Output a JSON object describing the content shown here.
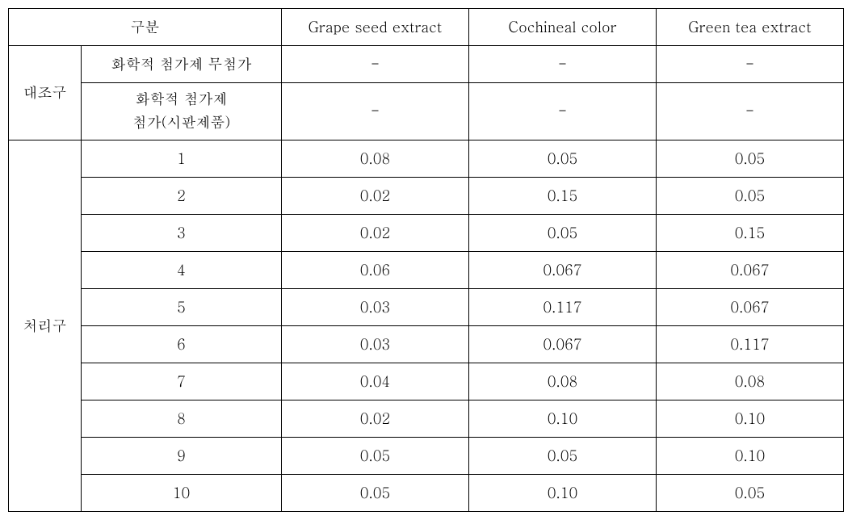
{
  "table": {
    "header": {
      "category": "구분",
      "col1": "Grape seed extract",
      "col2": "Cochineal color",
      "col3": "Green tea extract"
    },
    "control": {
      "label": "대조구",
      "rows": [
        {
          "sub": "화학적 첨가제 무첨가",
          "v1": "-",
          "v2": "-",
          "v3": "-"
        },
        {
          "sub_l1": "화학적 첨가제",
          "sub_l2": "첨가(시판제품)",
          "v1": "-",
          "v2": "-",
          "v3": "-"
        }
      ]
    },
    "treatment": {
      "label": "처리구",
      "rows": [
        {
          "sub": "1",
          "v1": "0.08",
          "v2": "0.05",
          "v3": "0.05"
        },
        {
          "sub": "2",
          "v1": "0.02",
          "v2": "0.15",
          "v3": "0.05"
        },
        {
          "sub": "3",
          "v1": "0.02",
          "v2": "0.05",
          "v3": "0.15"
        },
        {
          "sub": "4",
          "v1": "0.06",
          "v2": "0.067",
          "v3": "0.067"
        },
        {
          "sub": "5",
          "v1": "0.03",
          "v2": "0.117",
          "v3": "0.067"
        },
        {
          "sub": "6",
          "v1": "0.03",
          "v2": "0.067",
          "v3": "0.117"
        },
        {
          "sub": "7",
          "v1": "0.04",
          "v2": "0.08",
          "v3": "0.08"
        },
        {
          "sub": "8",
          "v1": "0.02",
          "v2": "0.10",
          "v3": "0.10"
        },
        {
          "sub": "9",
          "v1": "0.05",
          "v2": "0.05",
          "v3": "0.10"
        },
        {
          "sub": "10",
          "v1": "0.05",
          "v2": "0.10",
          "v3": "0.05"
        }
      ]
    }
  }
}
